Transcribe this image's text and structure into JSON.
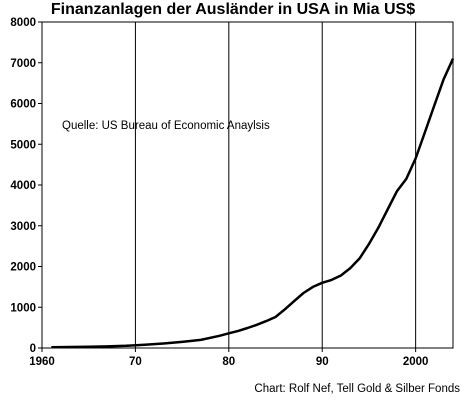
{
  "chart_data": {
    "type": "line",
    "title": "Finanzanlagen der Ausländer in USA in Mia US$",
    "xlabel": "",
    "ylabel": "",
    "xlim": [
      1960,
      2004
    ],
    "ylim": [
      0,
      8000
    ],
    "x_ticks": [
      1960,
      1970,
      1980,
      1990,
      2000
    ],
    "x_tick_labels": [
      "1960",
      "70",
      "80",
      "90",
      "2000"
    ],
    "y_ticks": [
      0,
      1000,
      2000,
      3000,
      4000,
      5000,
      6000,
      7000,
      8000
    ],
    "y_tick_labels": [
      "0",
      "1000",
      "2000",
      "3000",
      "4000",
      "5000",
      "6000",
      "7000",
      "8000"
    ],
    "grid": {
      "vertical": true,
      "horizontal": false
    },
    "annotation": "Quelle: US Bureau of Economic Anaylsis",
    "series": [
      {
        "x": [
          1961,
          1963,
          1965,
          1967,
          1969,
          1971,
          1973,
          1975,
          1977,
          1979,
          1980,
          1981,
          1982,
          1983,
          1984,
          1985,
          1986,
          1987,
          1988,
          1989,
          1990,
          1991,
          1992,
          1993,
          1994,
          1995,
          1996,
          1997,
          1998,
          1999,
          2000,
          2001,
          2002,
          2003,
          2004
        ],
        "y": [
          20,
          25,
          30,
          40,
          55,
          80,
          110,
          150,
          200,
          300,
          360,
          420,
          490,
          570,
          660,
          760,
          950,
          1150,
          1350,
          1500,
          1600,
          1670,
          1780,
          1960,
          2200,
          2550,
          2950,
          3400,
          3850,
          4150,
          4650,
          5300,
          5950,
          6600,
          7100
        ]
      }
    ],
    "colors": {
      "line": "#000000",
      "grid": "#000000",
      "axis": "#000000"
    }
  },
  "footer": "Chart: Rolf Nef, Tell Gold & Silber Fonds"
}
